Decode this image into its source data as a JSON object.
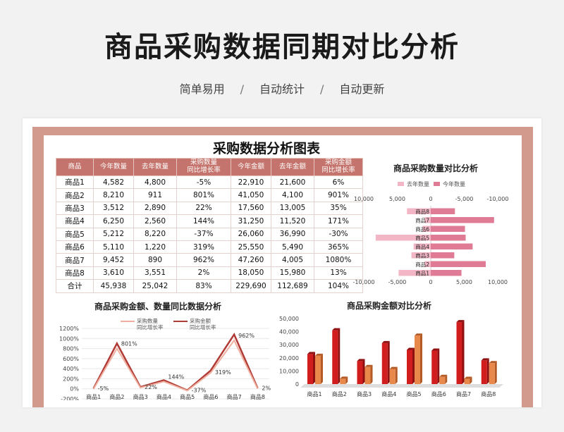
{
  "header": {
    "title": "商品采购数据同期对比分析",
    "tags": [
      "简单易用",
      "自动统计",
      "自动更新"
    ],
    "separator": "/"
  },
  "table": {
    "title": "采购数据分析图表",
    "headers": [
      "商品",
      "今年数量",
      "去年数量",
      "采购数量\n同比增长率",
      "今年金额",
      "去年金额",
      "采购金额\n同比增长率"
    ],
    "rows": [
      [
        "商品1",
        "4,582",
        "4,800",
        "-5%",
        "22,910",
        "21,600",
        "6%"
      ],
      [
        "商品2",
        "8,210",
        "911",
        "801%",
        "41,050",
        "4,100",
        "901%"
      ],
      [
        "商品3",
        "3,512",
        "2,890",
        "22%",
        "17,560",
        "13,005",
        "35%"
      ],
      [
        "商品4",
        "6,250",
        "2,560",
        "144%",
        "31,250",
        "11,520",
        "171%"
      ],
      [
        "商品5",
        "5,212",
        "8,220",
        "-37%",
        "26,060",
        "36,990",
        "-30%"
      ],
      [
        "商品6",
        "5,110",
        "1,220",
        "319%",
        "25,550",
        "5,490",
        "365%"
      ],
      [
        "商品7",
        "9,452",
        "890",
        "962%",
        "47,260",
        "4,005",
        "1080%"
      ],
      [
        "商品8",
        "3,610",
        "3,551",
        "2%",
        "18,050",
        "15,980",
        "13%"
      ],
      [
        "合计",
        "45,938",
        "25,042",
        "83%",
        "229,690",
        "112,689",
        "104%"
      ]
    ]
  },
  "colors": {
    "header_bg": "#c4746c",
    "frame": "#d19a8d",
    "last_year_bar": "#f2b6c6",
    "this_year_bar": "#e07b96",
    "qty_line": "#f0b0a0",
    "amt_line": "#b03a35",
    "red_col": "#d11d1d",
    "orange_col": "#e8884a"
  },
  "chart_data": [
    {
      "type": "bar",
      "orientation": "horizontal-butterfly",
      "title": "商品采购数量对比分析",
      "categories": [
        "商品1",
        "商品2",
        "商品3",
        "商品4",
        "商品5",
        "商品6",
        "商品7",
        "商品8"
      ],
      "series": [
        {
          "name": "去年数量",
          "values": [
            4800,
            911,
            2890,
            2560,
            8220,
            1220,
            890,
            3551
          ]
        },
        {
          "name": "今年数量",
          "values": [
            4582,
            8210,
            3512,
            6250,
            5212,
            5110,
            9452,
            3610
          ]
        }
      ],
      "top_ticks": [
        "10,000",
        "5,000",
        "0",
        "-5,000",
        "-10,000"
      ],
      "bottom_ticks": [
        "-10,000",
        "-5,000",
        "0",
        "5,000",
        "10,000"
      ],
      "legend_position": "top"
    },
    {
      "type": "line",
      "title": "商品采购金额、数量同比数据分析",
      "categories": [
        "商品1",
        "商品2",
        "商品3",
        "商品4",
        "商品5",
        "商品6",
        "商品7",
        "商品8"
      ],
      "series": [
        {
          "name": "采购数量\n同比增长率",
          "values": [
            -5,
            801,
            22,
            144,
            -37,
            319,
            962,
            2
          ]
        },
        {
          "name": "采购金额\n同比增长率",
          "values": [
            6,
            901,
            35,
            171,
            -30,
            365,
            1080,
            13
          ]
        }
      ],
      "data_labels": [
        "-5%",
        "801%",
        "22%",
        "144%",
        "-37%",
        "319%",
        "962%",
        "2%"
      ],
      "y_ticks": [
        "1200%",
        "1000%",
        "800%",
        "600%",
        "400%",
        "200%",
        "0%",
        "-200%"
      ],
      "ylim": [
        -200,
        1200
      ],
      "legend_position": "top"
    },
    {
      "type": "bar",
      "title": "商品采购金额对比分析",
      "categories": [
        "商品1",
        "商品2",
        "商品3",
        "商品4",
        "商品5",
        "商品6",
        "商品7",
        "商品8"
      ],
      "series": [
        {
          "name": "今年金额",
          "values": [
            22910,
            41050,
            17560,
            31250,
            26060,
            25550,
            47260,
            18050
          ]
        },
        {
          "name": "去年金额",
          "values": [
            21600,
            4100,
            13005,
            11520,
            36990,
            5490,
            4005,
            15980
          ]
        }
      ],
      "y_ticks": [
        "50,000",
        "40,000",
        "30,000",
        "20,000",
        "10,000",
        "0"
      ],
      "ylim": [
        0,
        50000
      ]
    }
  ]
}
